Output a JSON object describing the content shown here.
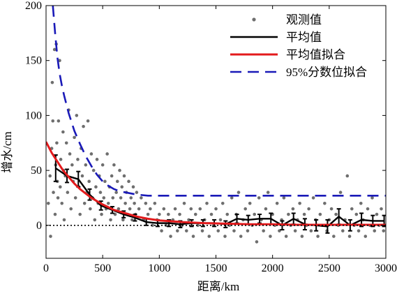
{
  "chart_data": {
    "type": "scatter",
    "xlabel": "距离/km",
    "ylabel": "增水/cm",
    "xlim": [
      0,
      3000
    ],
    "ylim": [
      -30,
      200
    ],
    "xticks": [
      "0",
      "500",
      "1000",
      "1500",
      "2000",
      "2500",
      "3000"
    ],
    "yticks": [
      "0",
      "50",
      "100",
      "150",
      "200"
    ],
    "grid": false,
    "legend_position": "top-right",
    "zero_line": {
      "y": 0,
      "style": "dotted",
      "color": "#000000"
    },
    "series": [
      {
        "name": "观测值",
        "kind": "scatter",
        "color": "#6e6e6e",
        "points": [
          [
            20,
            20
          ],
          [
            35,
            45
          ],
          [
            40,
            -10
          ],
          [
            50,
            70
          ],
          [
            55,
            130
          ],
          [
            60,
            95
          ],
          [
            65,
            30
          ],
          [
            75,
            160
          ],
          [
            80,
            10
          ],
          [
            85,
            55
          ],
          [
            90,
            165
          ],
          [
            95,
            75
          ],
          [
            100,
            40
          ],
          [
            105,
            25
          ],
          [
            110,
            95
          ],
          [
            120,
            150
          ],
          [
            125,
            35
          ],
          [
            130,
            60
          ],
          [
            140,
            20
          ],
          [
            150,
            85
          ],
          [
            155,
            50
          ],
          [
            160,
            5
          ],
          [
            170,
            45
          ],
          [
            180,
            75
          ],
          [
            190,
            30
          ],
          [
            200,
            105
          ],
          [
            210,
            65
          ],
          [
            220,
            15
          ],
          [
            230,
            55
          ],
          [
            240,
            40
          ],
          [
            250,
            80
          ],
          [
            260,
            25
          ],
          [
            270,
            100
          ],
          [
            280,
            60
          ],
          [
            290,
            35
          ],
          [
            300,
            10
          ],
          [
            310,
            70
          ],
          [
            320,
            45
          ],
          [
            330,
            90
          ],
          [
            340,
            20
          ],
          [
            350,
            55
          ],
          [
            360,
            30
          ],
          [
            370,
            95
          ],
          [
            380,
            40
          ],
          [
            390,
            15
          ],
          [
            400,
            65
          ],
          [
            410,
            25
          ],
          [
            420,
            50
          ],
          [
            430,
            5
          ],
          [
            440,
            35
          ],
          [
            450,
            60
          ],
          [
            460,
            20
          ],
          [
            470,
            45
          ],
          [
            480,
            30
          ],
          [
            490,
            10
          ],
          [
            500,
            55
          ],
          [
            510,
            25
          ],
          [
            520,
            40
          ],
          [
            530,
            15
          ],
          [
            540,
            65
          ],
          [
            550,
            20
          ],
          [
            560,
            35
          ],
          [
            570,
            5
          ],
          [
            580,
            45
          ],
          [
            590,
            25
          ],
          [
            600,
            55
          ],
          [
            610,
            10
          ],
          [
            620,
            30
          ],
          [
            630,
            40
          ],
          [
            640,
            15
          ],
          [
            650,
            50
          ],
          [
            660,
            25
          ],
          [
            670,
            35
          ],
          [
            680,
            5
          ],
          [
            690,
            45
          ],
          [
            700,
            20
          ],
          [
            710,
            30
          ],
          [
            720,
            10
          ],
          [
            730,
            40
          ],
          [
            740,
            15
          ],
          [
            750,
            25
          ],
          [
            760,
            5
          ],
          [
            770,
            35
          ],
          [
            780,
            20
          ],
          [
            790,
            10
          ],
          [
            800,
            30
          ],
          [
            820,
            15
          ],
          [
            840,
            25
          ],
          [
            860,
            5
          ],
          [
            880,
            20
          ],
          [
            900,
            10
          ],
          [
            920,
            15
          ],
          [
            940,
            0
          ],
          [
            960,
            20
          ],
          [
            980,
            5
          ],
          [
            1000,
            10
          ],
          [
            1020,
            -5
          ],
          [
            1040,
            15
          ],
          [
            1060,
            0
          ],
          [
            1080,
            10
          ],
          [
            1100,
            -10
          ],
          [
            1120,
            5
          ],
          [
            1140,
            15
          ],
          [
            1160,
            -5
          ],
          [
            1180,
            10
          ],
          [
            1200,
            0
          ],
          [
            1220,
            20
          ],
          [
            1240,
            -5
          ],
          [
            1260,
            5
          ],
          [
            1280,
            15
          ],
          [
            1300,
            -10
          ],
          [
            1320,
            10
          ],
          [
            1340,
            0
          ],
          [
            1360,
            15
          ],
          [
            1380,
            -5
          ],
          [
            1400,
            5
          ],
          [
            1420,
            20
          ],
          [
            1440,
            -10
          ],
          [
            1460,
            10
          ],
          [
            1480,
            0
          ],
          [
            1500,
            15
          ],
          [
            1520,
            -5
          ],
          [
            1540,
            5
          ],
          [
            1560,
            20
          ],
          [
            1580,
            -10
          ],
          [
            1600,
            10
          ],
          [
            1620,
            0
          ],
          [
            1640,
            25
          ],
          [
            1660,
            -5
          ],
          [
            1680,
            10
          ],
          [
            1700,
            30
          ],
          [
            1720,
            -10
          ],
          [
            1740,
            5
          ],
          [
            1760,
            15
          ],
          [
            1780,
            -5
          ],
          [
            1800,
            20
          ],
          [
            1820,
            0
          ],
          [
            1840,
            10
          ],
          [
            1860,
            -15
          ],
          [
            1880,
            25
          ],
          [
            1900,
            5
          ],
          [
            1920,
            -5
          ],
          [
            1940,
            15
          ],
          [
            1960,
            30
          ],
          [
            1980,
            -10
          ],
          [
            2000,
            10
          ],
          [
            2020,
            0
          ],
          [
            2040,
            20
          ],
          [
            2060,
            -5
          ],
          [
            2080,
            5
          ],
          [
            2100,
            25
          ],
          [
            2120,
            -10
          ],
          [
            2140,
            10
          ],
          [
            2160,
            0
          ],
          [
            2180,
            15
          ],
          [
            2200,
            -5
          ],
          [
            2220,
            5
          ],
          [
            2240,
            20
          ],
          [
            2260,
            -10
          ],
          [
            2280,
            10
          ],
          [
            2300,
            0
          ],
          [
            2320,
            15
          ],
          [
            2340,
            -5
          ],
          [
            2360,
            25
          ],
          [
            2380,
            5
          ],
          [
            2400,
            -10
          ],
          [
            2420,
            10
          ],
          [
            2440,
            0
          ],
          [
            2460,
            20
          ],
          [
            2480,
            -5
          ],
          [
            2500,
            5
          ],
          [
            2520,
            15
          ],
          [
            2540,
            -10
          ],
          [
            2560,
            10
          ],
          [
            2580,
            0
          ],
          [
            2600,
            30
          ],
          [
            2620,
            -5
          ],
          [
            2640,
            5
          ],
          [
            2660,
            45
          ],
          [
            2680,
            -10
          ],
          [
            2700,
            15
          ],
          [
            2720,
            0
          ],
          [
            2740,
            10
          ],
          [
            2760,
            -5
          ],
          [
            2780,
            20
          ],
          [
            2800,
            5
          ],
          [
            2820,
            -10
          ],
          [
            2840,
            15
          ],
          [
            2860,
            0
          ],
          [
            2880,
            25
          ],
          [
            2900,
            -5
          ],
          [
            2920,
            10
          ],
          [
            2940,
            0
          ],
          [
            2960,
            15
          ],
          [
            2980,
            -5
          ]
        ]
      },
      {
        "name": "平均值",
        "kind": "line_errorbar",
        "color": "#000000",
        "x": [
          85,
          185,
          285,
          385,
          485,
          585,
          685,
          785,
          885,
          985,
          1085,
          1185,
          1285,
          1385,
          1485,
          1585,
          1685,
          1785,
          1885,
          1985,
          2085,
          2185,
          2285,
          2385,
          2485,
          2585,
          2685,
          2785,
          2885,
          2985
        ],
        "y": [
          52,
          45,
          42,
          28,
          18,
          14,
          10,
          7,
          3,
          2,
          2,
          1,
          2,
          2,
          2,
          1,
          6,
          5,
          6,
          6,
          0,
          6,
          1,
          0,
          -1,
          8,
          0,
          5,
          4,
          4
        ],
        "err": [
          12,
          6,
          7,
          5,
          4,
          3,
          3,
          3,
          3,
          3,
          3,
          3,
          3,
          3,
          3,
          3,
          4,
          4,
          4,
          5,
          4,
          5,
          5,
          5,
          6,
          7,
          5,
          6,
          5,
          5
        ]
      },
      {
        "name": "平均值拟合",
        "kind": "line",
        "color": "#e31a1c",
        "x": [
          0,
          50,
          100,
          150,
          200,
          250,
          300,
          350,
          400,
          450,
          500,
          600,
          700,
          800,
          900,
          1000,
          1200,
          1400,
          1600,
          1800,
          2000,
          2200,
          2400,
          2600,
          2800,
          3000
        ],
        "y": [
          76,
          66,
          58,
          50,
          44,
          38,
          33,
          29,
          25,
          22,
          19,
          14,
          11,
          8,
          6,
          4.5,
          3,
          2,
          1.5,
          1,
          1,
          0.5,
          0.5,
          0.5,
          0.5,
          0.5
        ]
      },
      {
        "name": "95%分数位拟合",
        "kind": "line",
        "style": "dashed",
        "color": "#1a1ab8",
        "x": [
          60,
          80,
          100,
          120,
          140,
          160,
          180,
          200,
          250,
          300,
          350,
          400,
          450,
          500,
          550,
          600,
          650,
          700,
          800,
          900,
          1000,
          1200,
          1500,
          2000,
          2500,
          3000
        ],
        "y": [
          200,
          175,
          153,
          138,
          127,
          118,
          110,
          102,
          86,
          74,
          63,
          54,
          46,
          40,
          36,
          33,
          31,
          30,
          28,
          27,
          27,
          27,
          27,
          27,
          27,
          27
        ]
      }
    ]
  }
}
